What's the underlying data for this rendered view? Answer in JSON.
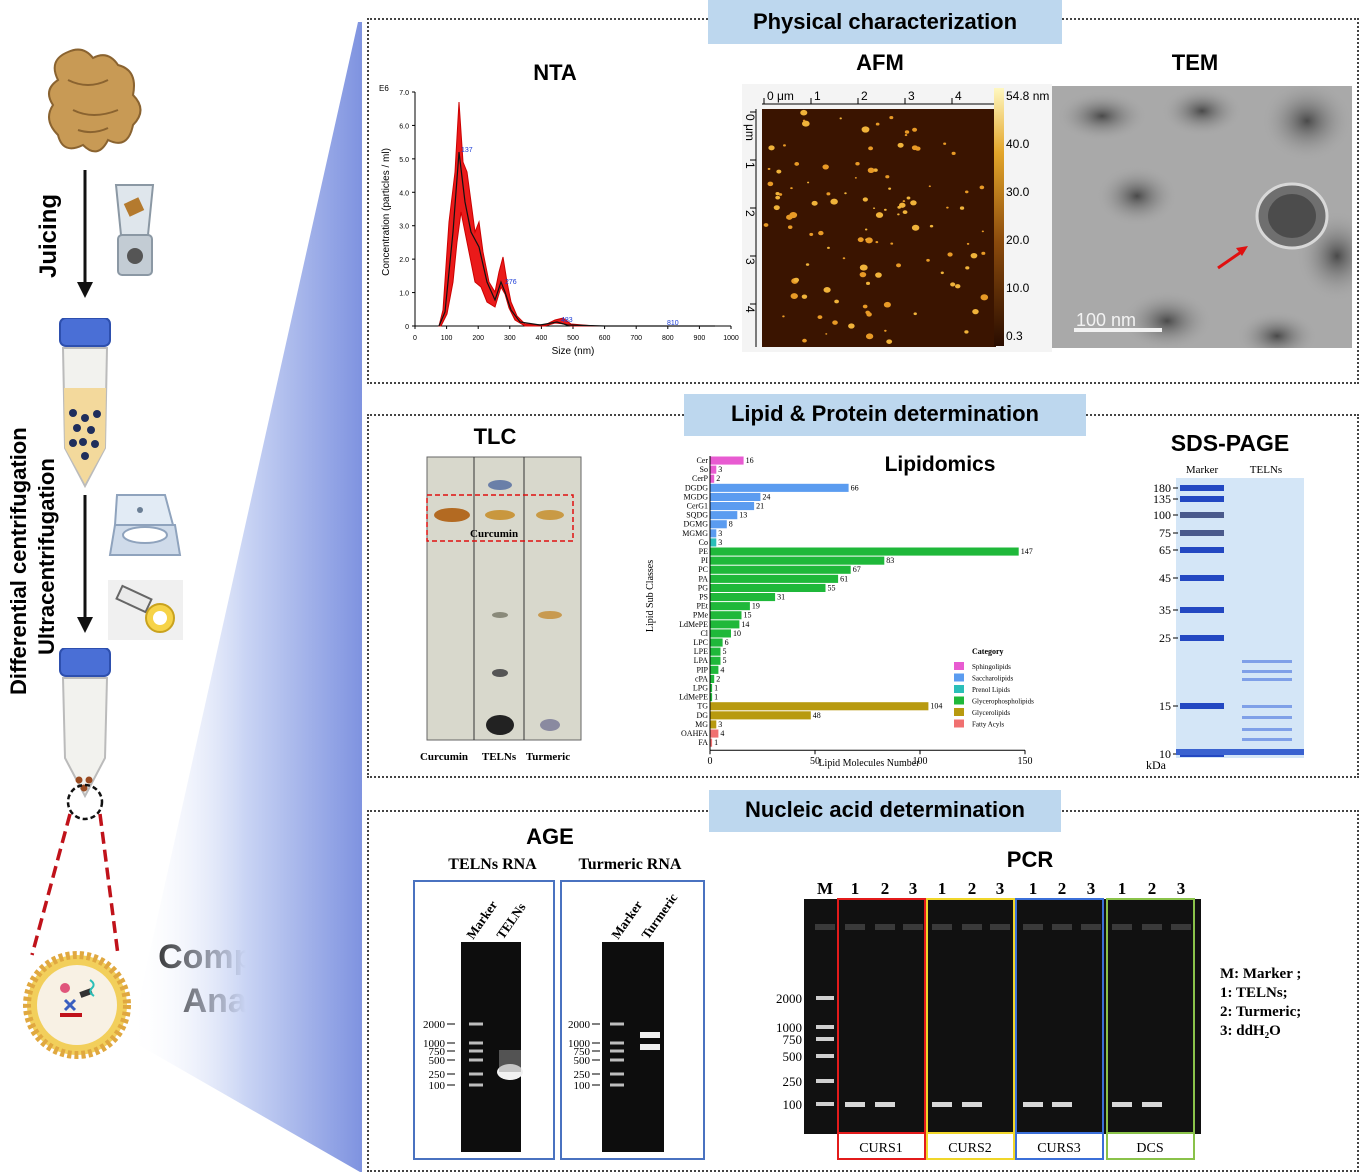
{
  "left": {
    "juicing": "Juicing",
    "differential": "Differential centrifugation",
    "ultra": "Ultracentrifugation",
    "component_l1": "Component",
    "component_l2": "Analysis"
  },
  "physical": {
    "banner": "Physical characterization",
    "nta": {
      "title": "NTA",
      "ylabel": "Concentration (particles / ml)",
      "xlabel": "Size (nm)",
      "exp": "E6",
      "yticks": [
        "0",
        "1.0",
        "2.0",
        "3.0",
        "4.0",
        "5.0",
        "6.0",
        "7.0"
      ],
      "xticks": [
        "0",
        "100",
        "200",
        "300",
        "400",
        "500",
        "600",
        "700",
        "800",
        "900",
        "1000"
      ],
      "peaks": [
        "137",
        "276",
        "483",
        "810"
      ]
    },
    "afm": {
      "title": "AFM",
      "xticks": [
        "0 μm",
        "1",
        "2",
        "3",
        "4"
      ],
      "yticks": [
        "0 μm",
        "1",
        "2",
        "3",
        "4"
      ],
      "scale": [
        "54.8 nm",
        "40.0",
        "30.0",
        "20.0",
        "10.0",
        "0.3"
      ]
    },
    "tem": {
      "title": "TEM",
      "scale": "100 nm"
    }
  },
  "lipid": {
    "banner": "Lipid & Protein  determination",
    "tlc": {
      "title": "TLC",
      "band": "Curcumin",
      "lanes": [
        "Curcumin",
        "TELNs",
        "Turmeric"
      ]
    },
    "lipidomics": {
      "title": "Lipidomics",
      "legend_title": "Category"
    },
    "sds": {
      "title": "SDS-PAGE",
      "lanes": [
        "Marker",
        "TELNs"
      ],
      "unit": "kDa",
      "markers": [
        "180",
        "135",
        "100",
        "75",
        "65",
        "45",
        "35",
        "25",
        "15",
        "10"
      ]
    }
  },
  "nucleic": {
    "banner": "Nucleic acid determination",
    "age": {
      "title": "AGE",
      "gel1": {
        "title": "TELNs RNA",
        "lanes": [
          "Marker",
          "TELNs"
        ]
      },
      "gel2": {
        "title": "Turmeric RNA",
        "lanes": [
          "Marker",
          "Turmeric"
        ]
      },
      "ladder": [
        "2000",
        "1000",
        "750",
        "500",
        "250",
        "100"
      ]
    },
    "pcr": {
      "title": "PCR",
      "lanes": [
        "M",
        "1",
        "2",
        "3",
        "1",
        "2",
        "3",
        "1",
        "2",
        "3",
        "1",
        "2",
        "3"
      ],
      "ladder": [
        "2000",
        "1000",
        "750",
        "500",
        "250",
        "100"
      ],
      "groups": [
        "CURS1",
        "CURS2",
        "CURS3",
        "DCS"
      ],
      "legend": [
        "M: Marker ;",
        "1: TELNs;",
        "2: Turmeric;",
        "3: ddH₂O"
      ]
    }
  },
  "chart_data": [
    {
      "type": "bar",
      "title": "Lipidomics",
      "orientation": "horizontal",
      "ylabel": "Lipid Sub Classes",
      "xlabel": "Lipid Molecules Number",
      "xlim": [
        0,
        150
      ],
      "xticks": [
        0,
        50,
        100,
        150
      ],
      "categories": [
        "Cer",
        "So",
        "CerP",
        "DGDG",
        "MGDG",
        "CerG1",
        "SQDG",
        "DGMG",
        "MGMG",
        "Co",
        "PE",
        "PI",
        "PC",
        "PA",
        "PG",
        "PS",
        "PEt",
        "PMe",
        "LdMePE",
        "Cl",
        "LPC",
        "LPE",
        "LPA",
        "PIP",
        "cPA",
        "LPG",
        "LdMePE",
        "TG",
        "DG",
        "MG",
        "OAHFA",
        "FA"
      ],
      "values": [
        16,
        3,
        2,
        66,
        24,
        21,
        13,
        8,
        3,
        3,
        147,
        83,
        67,
        61,
        55,
        31,
        19,
        15,
        14,
        10,
        6,
        5,
        5,
        4,
        2,
        1,
        1,
        104,
        48,
        3,
        4,
        1
      ],
      "category_group": [
        0,
        0,
        0,
        1,
        1,
        1,
        1,
        1,
        1,
        2,
        3,
        3,
        3,
        3,
        3,
        3,
        3,
        3,
        3,
        3,
        3,
        3,
        3,
        3,
        3,
        3,
        3,
        4,
        4,
        4,
        5,
        5
      ],
      "series": [
        {
          "name": "Sphingolipids",
          "color": "#e85bd1"
        },
        {
          "name": "Saccharolipids",
          "color": "#5b9cf0"
        },
        {
          "name": "Prenol Lipids",
          "color": "#2bbfb8"
        },
        {
          "name": "Glycerophospholipids",
          "color": "#1fb83a"
        },
        {
          "name": "Glycerolipids",
          "color": "#b89a10"
        },
        {
          "name": "Fatty Acyls",
          "color": "#f07070"
        }
      ],
      "legend_placement": "bottom-right"
    }
  ]
}
